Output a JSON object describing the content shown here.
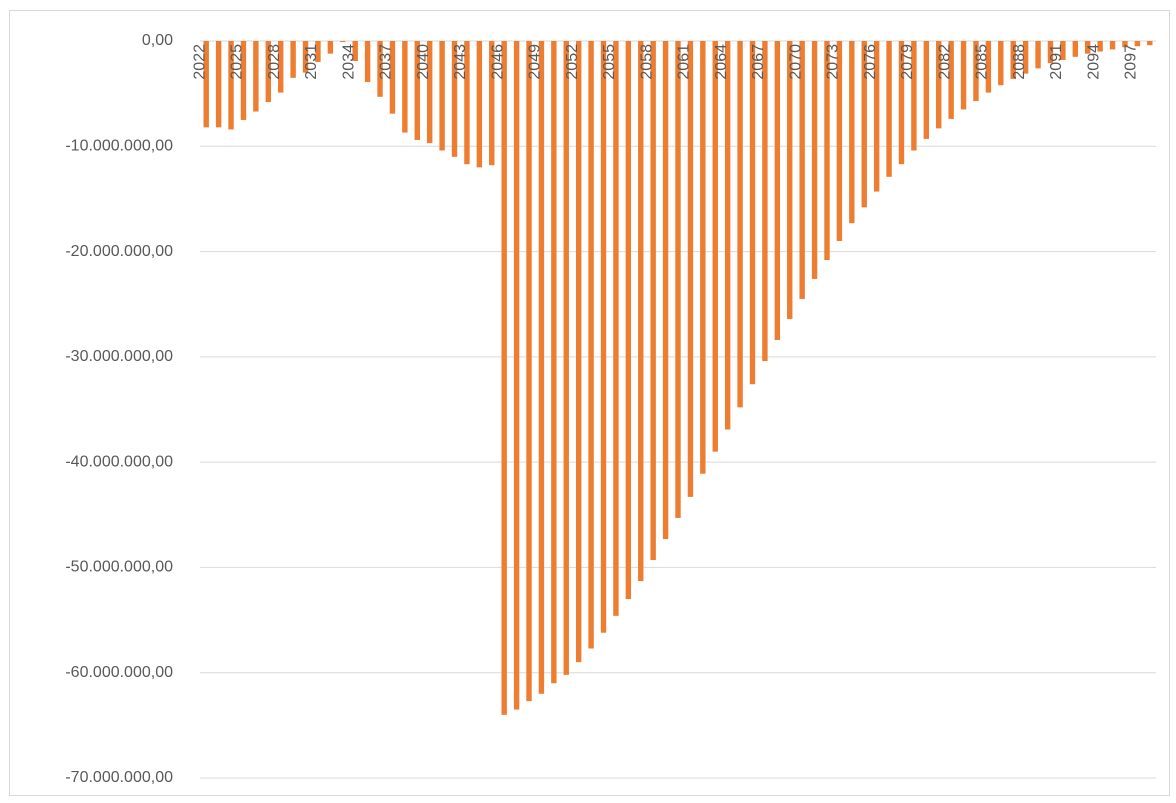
{
  "chart_data": {
    "type": "bar",
    "categories": [
      "2022",
      null,
      null,
      "2025",
      null,
      null,
      "2028",
      null,
      null,
      "2031",
      null,
      null,
      "2034",
      null,
      null,
      "2037",
      null,
      null,
      "2040",
      null,
      null,
      "2043",
      null,
      null,
      "2046",
      null,
      null,
      "2049",
      null,
      null,
      "2052",
      null,
      null,
      "2055",
      null,
      null,
      "2058",
      null,
      null,
      "2061",
      null,
      null,
      "2064",
      null,
      null,
      "2067",
      null,
      null,
      "2070",
      null,
      null,
      "2073",
      null,
      null,
      "2076",
      null,
      null,
      "2079",
      null,
      null,
      "2082",
      null,
      null,
      "2085",
      null,
      null,
      "2088",
      null,
      null,
      "2091",
      null,
      null,
      "2094",
      null,
      null,
      "2097",
      null
    ],
    "values": [
      -8200000,
      -8200000,
      -8400000,
      -7500000,
      -6700000,
      -5800000,
      -4900000,
      -3500000,
      -3000000,
      -2000000,
      -1200000,
      -100000,
      -1900000,
      -3900000,
      -5300000,
      -6900000,
      -8700000,
      -9400000,
      -9700000,
      -10400000,
      -11000000,
      -11700000,
      -12000000,
      -11800000,
      -64000000,
      -63500000,
      -62700000,
      -62000000,
      -61000000,
      -60200000,
      -59000000,
      -57700000,
      -56200000,
      -54600000,
      -53000000,
      -51300000,
      -49300000,
      -47300000,
      -45300000,
      -43300000,
      -41100000,
      -39000000,
      -36900000,
      -34800000,
      -32600000,
      -30400000,
      -28400000,
      -26400000,
      -24500000,
      -22600000,
      -20800000,
      -19000000,
      -17300000,
      -15800000,
      -14300000,
      -12900000,
      -11700000,
      -10400000,
      -9300000,
      -8300000,
      -7400000,
      -6500000,
      -5700000,
      -4900000,
      -4200000,
      -3600000,
      -3100000,
      -2600000,
      -2100000,
      -1800000,
      -1500000,
      -1200000,
      -1000000,
      -800000,
      -600000,
      -500000,
      -400000
    ],
    "color": "#ed7d31",
    "ylim": [
      -70000000,
      0
    ],
    "yticks": [
      {
        "value": 0,
        "label": "0,00"
      },
      {
        "value": -10000000,
        "label": "-10.000.000,00"
      },
      {
        "value": -20000000,
        "label": "-20.000.000,00"
      },
      {
        "value": -30000000,
        "label": "-30.000.000,00"
      },
      {
        "value": -40000000,
        "label": "-40.000.000,00"
      },
      {
        "value": -50000000,
        "label": "-50.000.000,00"
      },
      {
        "value": -60000000,
        "label": "-60.000.000,00"
      },
      {
        "value": -70000000,
        "label": "-70.000.000,00"
      }
    ],
    "grid": true
  }
}
